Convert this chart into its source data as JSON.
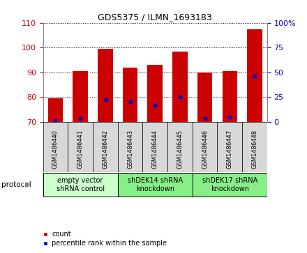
{
  "title": "GDS5375 / ILMN_1693183",
  "samples": [
    "GSM1486440",
    "GSM1486441",
    "GSM1486442",
    "GSM1486443",
    "GSM1486444",
    "GSM1486445",
    "GSM1486446",
    "GSM1486447",
    "GSM1486448"
  ],
  "count_values": [
    79.5,
    90.5,
    99.5,
    92.0,
    93.0,
    98.5,
    90.0,
    90.5,
    107.5
  ],
  "percentile_values": [
    1.0,
    3.0,
    22.0,
    20.0,
    17.0,
    25.0,
    3.0,
    4.5,
    46.0
  ],
  "ylim_left": [
    70,
    110
  ],
  "ylim_right": [
    0,
    100
  ],
  "yticks_left": [
    70,
    80,
    90,
    100,
    110
  ],
  "yticks_right": [
    0,
    25,
    50,
    75,
    100
  ],
  "bar_bottom": 70,
  "bar_color": "#cc0000",
  "percentile_color": "#0000cc",
  "bar_width": 0.6,
  "protocol_groups": [
    {
      "label": "empty vector\nshRNA control",
      "start": 0,
      "end": 3,
      "color": "#ccffcc"
    },
    {
      "label": "shDEK14 shRNA\nknockdown",
      "start": 3,
      "end": 6,
      "color": "#88ee88"
    },
    {
      "label": "shDEK17 shRNA\nknockdown",
      "start": 6,
      "end": 9,
      "color": "#88ee88"
    }
  ],
  "legend_count_label": "count",
  "legend_percentile_label": "percentile rank within the sample",
  "protocol_label": "protocol",
  "left_tick_color": "#cc0000",
  "right_tick_color": "#0000cc",
  "background_color": "#ffffff",
  "plot_bg_color": "#ffffff",
  "xtick_area_color": "#d8d8d8",
  "title_fontsize": 9,
  "axis_fontsize": 8,
  "xtick_fontsize": 6,
  "proto_fontsize": 7
}
